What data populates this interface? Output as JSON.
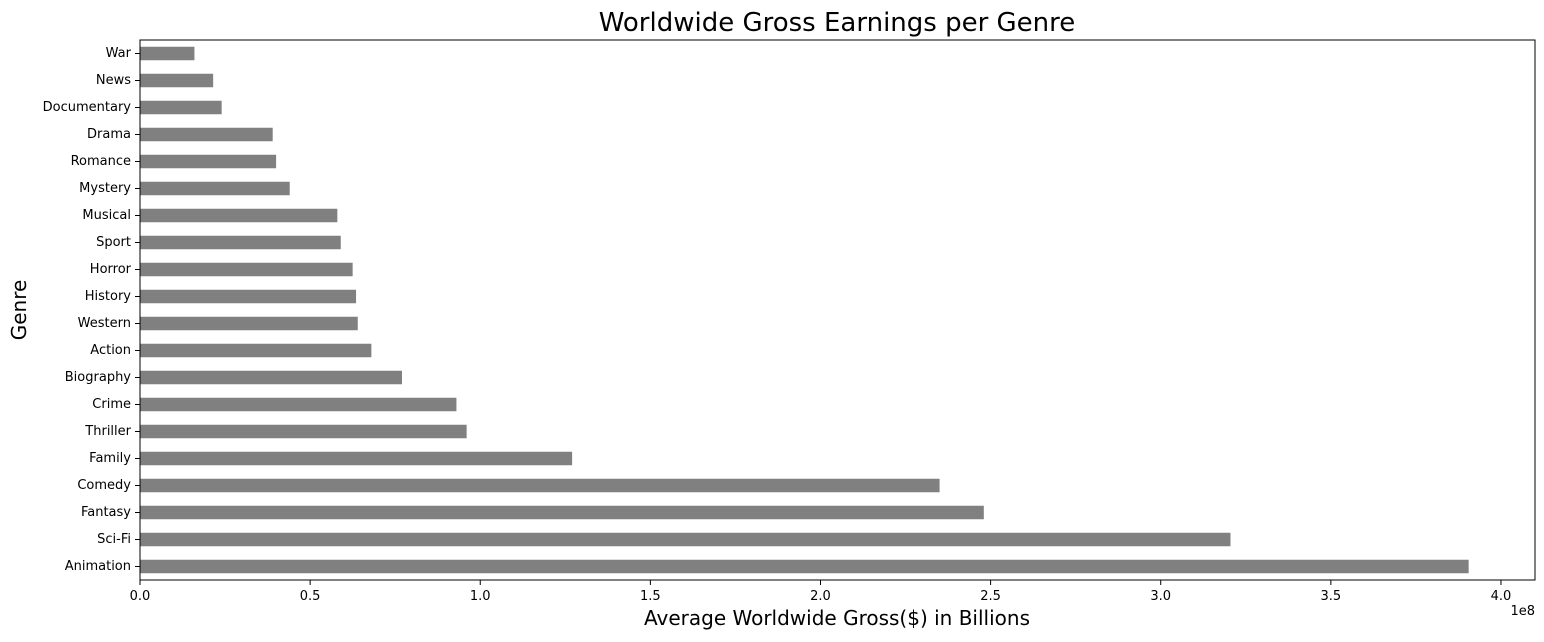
{
  "chart_data": {
    "type": "bar",
    "orientation": "horizontal",
    "title": "Worldwide Gross Earnings per Genre",
    "xlabel": "Average Worldwide Gross($) in Billions",
    "ylabel": "Genre",
    "x_offset_label": "1e8",
    "xlim": [
      0,
      4.1
    ],
    "xticks": [
      0.0,
      0.5,
      1.0,
      1.5,
      2.0,
      2.5,
      3.0,
      3.5,
      4.0
    ],
    "xtick_labels": [
      "0.0",
      "0.5",
      "1.0",
      "1.5",
      "2.0",
      "2.5",
      "3.0",
      "3.5",
      "4.0"
    ],
    "categories": [
      "War",
      "News",
      "Documentary",
      "Drama",
      "Romance",
      "Mystery",
      "Musical",
      "Sport",
      "Horror",
      "History",
      "Western",
      "Action",
      "Biography",
      "Crime",
      "Thriller",
      "Family",
      "Comedy",
      "Fantasy",
      "Sci-Fi",
      "Animation"
    ],
    "values": [
      0.16,
      0.215,
      0.24,
      0.39,
      0.4,
      0.44,
      0.58,
      0.59,
      0.625,
      0.635,
      0.64,
      0.68,
      0.77,
      0.93,
      0.96,
      1.27,
      2.35,
      2.48,
      3.205,
      3.905
    ],
    "bar_color": "#808080",
    "grid": false,
    "legend": "none"
  }
}
